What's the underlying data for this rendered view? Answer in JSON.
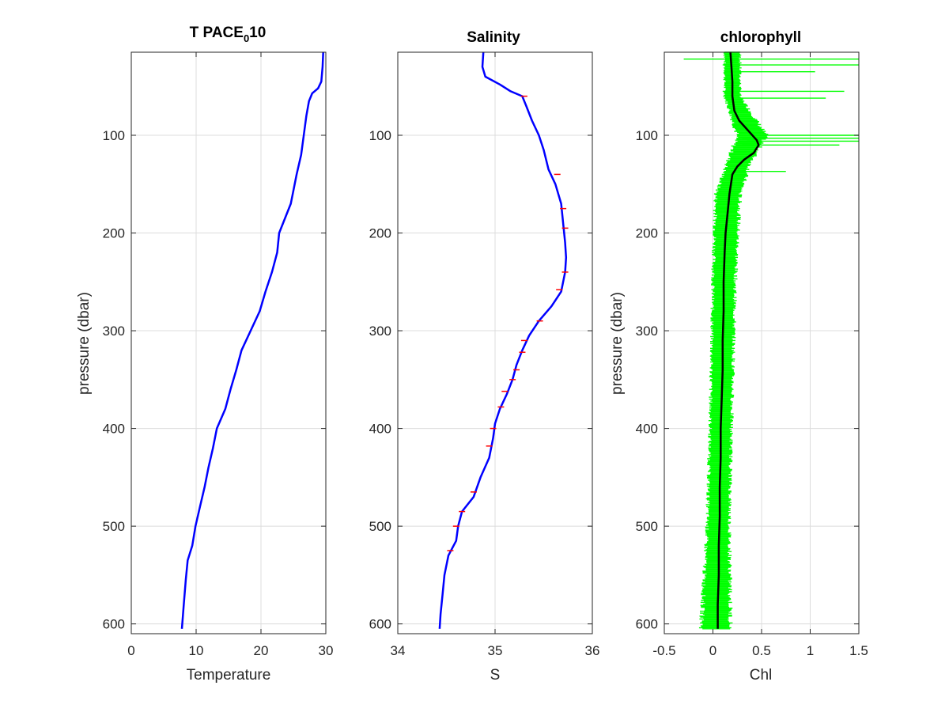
{
  "chart_data": [
    {
      "type": "line",
      "title": "T PACE",
      "title_subscript": "0",
      "title_suffix": "10",
      "xlabel": "Temperature",
      "ylabel": "pressure (dbar)",
      "xlim": [
        0,
        30
      ],
      "ylim": [
        610,
        15
      ],
      "y_reversed": true,
      "grid": true,
      "xticks": [
        0,
        10,
        20,
        30
      ],
      "yticks": [
        100,
        200,
        300,
        400,
        500,
        600
      ],
      "series": [
        {
          "color": "#0000ff",
          "points": [
            [
              29.6,
              15
            ],
            [
              29.5,
              30
            ],
            [
              29.3,
              45
            ],
            [
              28.8,
              52
            ],
            [
              27.9,
              57
            ],
            [
              27.4,
              65
            ],
            [
              27.0,
              80
            ],
            [
              26.6,
              100
            ],
            [
              26.2,
              120
            ],
            [
              25.5,
              140
            ],
            [
              24.6,
              170
            ],
            [
              22.8,
              200
            ],
            [
              22.5,
              220
            ],
            [
              21.7,
              240
            ],
            [
              20.7,
              260
            ],
            [
              19.8,
              280
            ],
            [
              18.4,
              300
            ],
            [
              17.0,
              320
            ],
            [
              16.2,
              340
            ],
            [
              15.3,
              360
            ],
            [
              14.5,
              380
            ],
            [
              13.2,
              400
            ],
            [
              12.6,
              420
            ],
            [
              11.9,
              440
            ],
            [
              11.3,
              460
            ],
            [
              10.6,
              480
            ],
            [
              9.9,
              500
            ],
            [
              9.4,
              520
            ],
            [
              8.7,
              535
            ],
            [
              8.4,
              555
            ],
            [
              8.1,
              580
            ],
            [
              7.8,
              605
            ]
          ]
        }
      ]
    },
    {
      "type": "line",
      "title": "Salinity",
      "xlabel": "S",
      "ylabel": "",
      "xlim": [
        34,
        36
      ],
      "ylim": [
        610,
        15
      ],
      "y_reversed": true,
      "grid": true,
      "xticks": [
        34,
        35,
        36
      ],
      "yticks": [
        100,
        200,
        300,
        400,
        500,
        600
      ],
      "series": [
        {
          "color": "#0000ff",
          "points": [
            [
              34.88,
              15
            ],
            [
              34.87,
              30
            ],
            [
              34.9,
              40
            ],
            [
              35.05,
              48
            ],
            [
              35.16,
              55
            ],
            [
              35.28,
              60
            ],
            [
              35.32,
              70
            ],
            [
              35.38,
              85
            ],
            [
              35.45,
              100
            ],
            [
              35.5,
              115
            ],
            [
              35.55,
              135
            ],
            [
              35.62,
              150
            ],
            [
              35.68,
              170
            ],
            [
              35.7,
              190
            ],
            [
              35.72,
              210
            ],
            [
              35.73,
              225
            ],
            [
              35.72,
              240
            ],
            [
              35.68,
              260
            ],
            [
              35.58,
              275
            ],
            [
              35.45,
              290
            ],
            [
              35.35,
              305
            ],
            [
              35.28,
              320
            ],
            [
              35.22,
              335
            ],
            [
              35.18,
              350
            ],
            [
              35.12,
              365
            ],
            [
              35.05,
              380
            ],
            [
              35.0,
              395
            ],
            [
              34.98,
              410
            ],
            [
              34.94,
              430
            ],
            [
              34.85,
              450
            ],
            [
              34.78,
              470
            ],
            [
              34.66,
              485
            ],
            [
              34.62,
              500
            ],
            [
              34.6,
              515
            ],
            [
              34.52,
              530
            ],
            [
              34.48,
              550
            ],
            [
              34.46,
              570
            ],
            [
              34.44,
              590
            ],
            [
              34.43,
              605
            ]
          ]
        }
      ],
      "error_ticks": {
        "color": "#ff0000",
        "points": [
          [
            35.3,
            60
          ],
          [
            35.64,
            140
          ],
          [
            35.7,
            175
          ],
          [
            35.72,
            195
          ],
          [
            35.72,
            240
          ],
          [
            35.66,
            258
          ],
          [
            35.46,
            290
          ],
          [
            35.3,
            310
          ],
          [
            35.28,
            322
          ],
          [
            35.22,
            340
          ],
          [
            35.18,
            350
          ],
          [
            35.1,
            362
          ],
          [
            35.06,
            378
          ],
          [
            34.98,
            400
          ],
          [
            34.94,
            418
          ],
          [
            34.78,
            465
          ],
          [
            34.66,
            485
          ],
          [
            34.6,
            500
          ],
          [
            34.54,
            525
          ]
        ]
      }
    },
    {
      "type": "line",
      "title": "chlorophyll",
      "xlabel": "Chl",
      "ylabel": "pressure (dbar)",
      "xlim": [
        -0.5,
        1.5
      ],
      "ylim": [
        610,
        15
      ],
      "y_reversed": true,
      "grid": true,
      "xticks": [
        -0.5,
        0,
        0.5,
        1,
        1.5
      ],
      "xtick_labels": [
        "-0.5",
        "0",
        "0.5",
        "1",
        "1.5"
      ],
      "yticks": [
        100,
        200,
        300,
        400,
        500,
        600
      ],
      "series": [
        {
          "name": "",
          "color": "#000000",
          "points": [
            [
              0.18,
              15
            ],
            [
              0.19,
              30
            ],
            [
              0.2,
              45
            ],
            [
              0.2,
              60
            ],
            [
              0.22,
              75
            ],
            [
              0.27,
              85
            ],
            [
              0.36,
              95
            ],
            [
              0.45,
              105
            ],
            [
              0.47,
              110
            ],
            [
              0.42,
              118
            ],
            [
              0.32,
              125
            ],
            [
              0.25,
              132
            ],
            [
              0.2,
              140
            ],
            [
              0.17,
              160
            ],
            [
              0.15,
              180
            ],
            [
              0.13,
              200
            ],
            [
              0.12,
              220
            ],
            [
              0.11,
              250
            ],
            [
              0.11,
              280
            ],
            [
              0.1,
              310
            ],
            [
              0.1,
              340
            ],
            [
              0.09,
              370
            ],
            [
              0.08,
              400
            ],
            [
              0.08,
              430
            ],
            [
              0.07,
              460
            ],
            [
              0.07,
              490
            ],
            [
              0.06,
              520
            ],
            [
              0.06,
              550
            ],
            [
              0.05,
              580
            ],
            [
              0.05,
              605
            ]
          ]
        }
      ],
      "spread": {
        "color": "#00ff00",
        "band": [
          [
            15,
            0.12,
            0.28
          ],
          [
            60,
            0.12,
            0.28
          ],
          [
            100,
            0.25,
            0.55
          ],
          [
            130,
            0.14,
            0.38
          ],
          [
            160,
            0.03,
            0.28
          ],
          [
            250,
            0.0,
            0.23
          ],
          [
            400,
            -0.03,
            0.19
          ],
          [
            500,
            -0.06,
            0.17
          ],
          [
            605,
            -0.12,
            0.18
          ]
        ],
        "spikes": [
          [
            22,
            -0.3,
            1.5
          ],
          [
            28,
            0.1,
            1.5
          ],
          [
            35,
            0.12,
            1.05
          ],
          [
            55,
            0.1,
            1.35
          ],
          [
            62,
            0.14,
            1.16
          ],
          [
            100,
            0.25,
            1.5
          ],
          [
            103,
            0.3,
            1.5
          ],
          [
            106,
            0.35,
            1.5
          ],
          [
            110,
            0.3,
            1.3
          ],
          [
            137,
            0.15,
            0.75
          ]
        ]
      }
    }
  ]
}
